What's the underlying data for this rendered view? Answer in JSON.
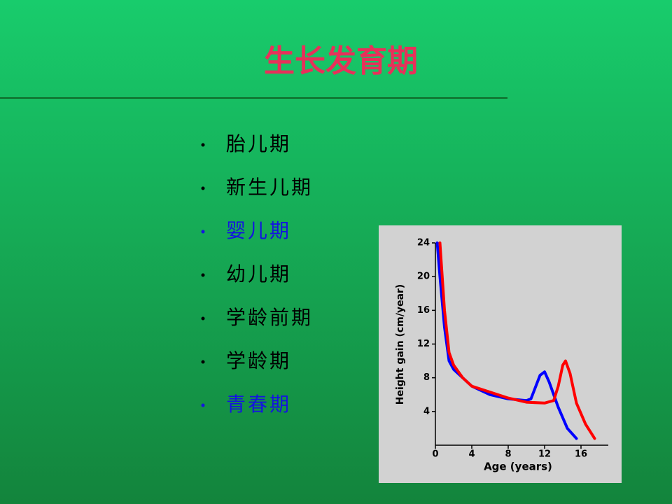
{
  "slide": {
    "title": "生长发育期",
    "title_color": "#e8305a",
    "items": [
      {
        "text": "胎儿期",
        "color": "#000000"
      },
      {
        "text": "新生儿期",
        "color": "#000000"
      },
      {
        "text": "婴儿期",
        "color": "#1414e0"
      },
      {
        "text": "幼儿期",
        "color": "#000000"
      },
      {
        "text": "学龄前期",
        "color": "#000000"
      },
      {
        "text": "学龄期",
        "color": "#000000"
      },
      {
        "text": "青春期",
        "color": "#1414e0"
      }
    ]
  },
  "chart_data": {
    "type": "line",
    "x_label": "Age (years)",
    "y_label": "Height gain (cm/year)",
    "xlim": [
      0,
      19
    ],
    "ylim": [
      0,
      24
    ],
    "xticks": [
      0,
      4,
      8,
      12,
      16
    ],
    "yticks": [
      4,
      8,
      12,
      16,
      20,
      24
    ],
    "grid": false,
    "series": [
      {
        "color": "#0000ff",
        "x": [
          0.2,
          0.5,
          1,
          1.5,
          2,
          3,
          4,
          6,
          8,
          10,
          10.5,
          11.5,
          12,
          12.5,
          13.5,
          14.5,
          15.5
        ],
        "values": [
          24,
          20,
          14,
          10,
          9,
          8,
          7,
          6,
          5.5,
          5.3,
          5.5,
          8.3,
          8.7,
          7.5,
          4.5,
          2,
          0.8
        ]
      },
      {
        "color": "#ff0000",
        "x": [
          0.5,
          1,
          1.5,
          2,
          3,
          4,
          6,
          8,
          10,
          12,
          13,
          13.5,
          14,
          14.3,
          14.8,
          15.5,
          16.5,
          17.5
        ],
        "values": [
          24,
          16,
          11,
          9.5,
          8,
          7,
          6.3,
          5.6,
          5.1,
          5,
          5.3,
          7,
          9.5,
          10,
          8.5,
          5,
          2.5,
          0.8
        ]
      }
    ]
  }
}
